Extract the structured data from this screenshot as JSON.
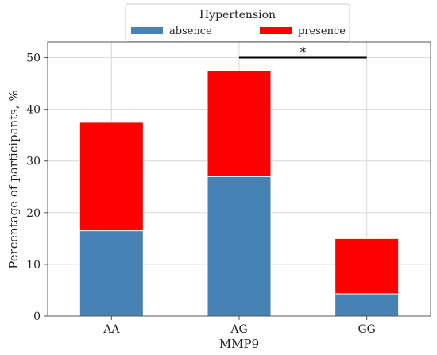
{
  "chart_data": {
    "type": "bar",
    "stacked": true,
    "categories": [
      "AA",
      "AG",
      "GG"
    ],
    "series": [
      {
        "name": "absence",
        "values": [
          16.5,
          27.0,
          4.3
        ]
      },
      {
        "name": "presence",
        "values": [
          21.0,
          20.4,
          10.7
        ]
      }
    ],
    "title": "",
    "xlabel": "MMP9",
    "ylabel": "Percentage of participants, %",
    "ylim": [
      0,
      53
    ],
    "yticks": [
      0,
      10,
      20,
      30,
      40,
      50
    ],
    "grid": true,
    "legend": {
      "title": "Hypertension",
      "placement": "top-center, above plot",
      "entries": [
        "absence",
        "presence"
      ]
    },
    "colors": {
      "absence": "#4682b4",
      "presence": "#ff0000"
    },
    "annotation": {
      "text": "*",
      "from": "AG",
      "to": "GG",
      "y": 50
    }
  }
}
